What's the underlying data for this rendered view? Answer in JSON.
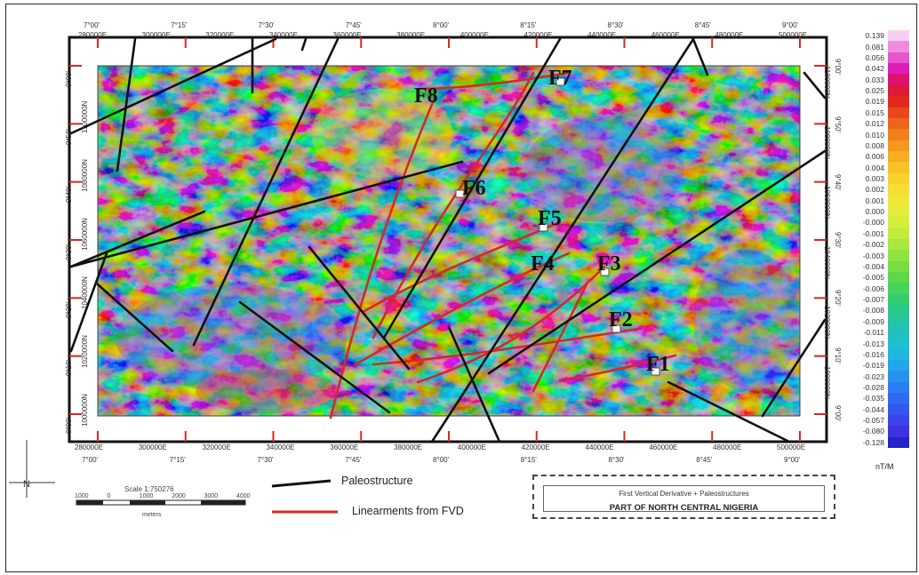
{
  "map": {
    "top_lon_labels": [
      "7°00'",
      "7°15'",
      "7°30'",
      "7°45'",
      "8°00'",
      "8°15'",
      "8°30'",
      "8°45'",
      "9°00'"
    ],
    "top_easting_labels": [
      "280000E",
      "300000E",
      "320000E",
      "340000E",
      "360000E",
      "380000E",
      "400000E",
      "420000E",
      "440000E",
      "460000E",
      "480000E",
      "500000E"
    ],
    "bottom_easting_labels": [
      "280000E",
      "300000E",
      "320000E",
      "340000E",
      "360000E",
      "380000E",
      "400000E",
      "420000E",
      "440000E",
      "460000E",
      "480000E",
      "500000E"
    ],
    "bottom_lon_labels": [
      "7°00'",
      "7°15'",
      "7°30'",
      "7°45'",
      "8°00'",
      "8°15'",
      "8°30'",
      "8°45'",
      "9°00'"
    ],
    "left_lat_labels": [
      "9°00'",
      "9°50'",
      "9°40'",
      "9°30'",
      "9°20'",
      "9°10'",
      "9°00'"
    ],
    "left_northing_labels": [
      "1100000N",
      "1080000N",
      "1060000N",
      "1040000N",
      "1020000N",
      "1000000N"
    ],
    "right_lat_labels": [
      "9°00'",
      "9°50'",
      "9°40'",
      "9°30'",
      "9°20'",
      "9°10'",
      "9°00'"
    ],
    "right_northing_labels": [
      "1100000N",
      "1080000N",
      "1060000N",
      "1040000N",
      "1020000N",
      "1000000N"
    ],
    "fault_labels": [
      "F1",
      "F2",
      "F3",
      "F4",
      "F5",
      "F6",
      "F7",
      "F8"
    ]
  },
  "colorbar": {
    "unit": "nT/M",
    "values": [
      "0.139",
      "0.081",
      "0.056",
      "0.042",
      "0.033",
      "0.025",
      "0.019",
      "0.015",
      "0.012",
      "0.010",
      "0.008",
      "0.006",
      "0.004",
      "0.003",
      "0.002",
      "0.001",
      "0.000",
      "-0.000",
      "-0.001",
      "-0.002",
      "-0.003",
      "-0.004",
      "-0.005",
      "-0.006",
      "-0.007",
      "-0.008",
      "-0.009",
      "-0.011",
      "-0.013",
      "-0.016",
      "-0.019",
      "-0.023",
      "-0.028",
      "-0.035",
      "-0.044",
      "-0.057",
      "-0.080",
      "-0.128"
    ],
    "colors": [
      "#f6d0f2",
      "#f08ce0",
      "#e855cf",
      "#e01db8",
      "#dc1470",
      "#de1a38",
      "#e3281e",
      "#e8481a",
      "#ed651a",
      "#f1801c",
      "#f4981e",
      "#f6ad22",
      "#f8c224",
      "#f7d22a",
      "#f4de2e",
      "#eee834",
      "#e4ed3a",
      "#d4ee3c",
      "#c0ec3c",
      "#a9e83c",
      "#91e33e",
      "#78de42",
      "#5ed848",
      "#45d35a",
      "#33cd70",
      "#2ac88a",
      "#24c4a4",
      "#20c0bc",
      "#1ec0d0",
      "#1fb6e0",
      "#22a6ea",
      "#2692ef",
      "#2b7ef2",
      "#2f6af3",
      "#3356f0",
      "#3a44ea",
      "#3f32e2",
      "#2424c8"
    ]
  },
  "legend": {
    "paleostructure_label": "Paleostructure",
    "lineaments_label": "Linearments from FVD",
    "paleostructure_color": "#111111",
    "lineaments_color": "#e0302a"
  },
  "title_block": {
    "line1": "First Vertical Derivative + Paleostructures",
    "line2": "PART OF NORTH CENTRAL NIGERIA"
  },
  "scale": {
    "label": "Scale 1:750276",
    "ticks": [
      "1000",
      "0",
      "1000",
      "2000",
      "3000",
      "4000"
    ],
    "unit_text": "meters"
  }
}
